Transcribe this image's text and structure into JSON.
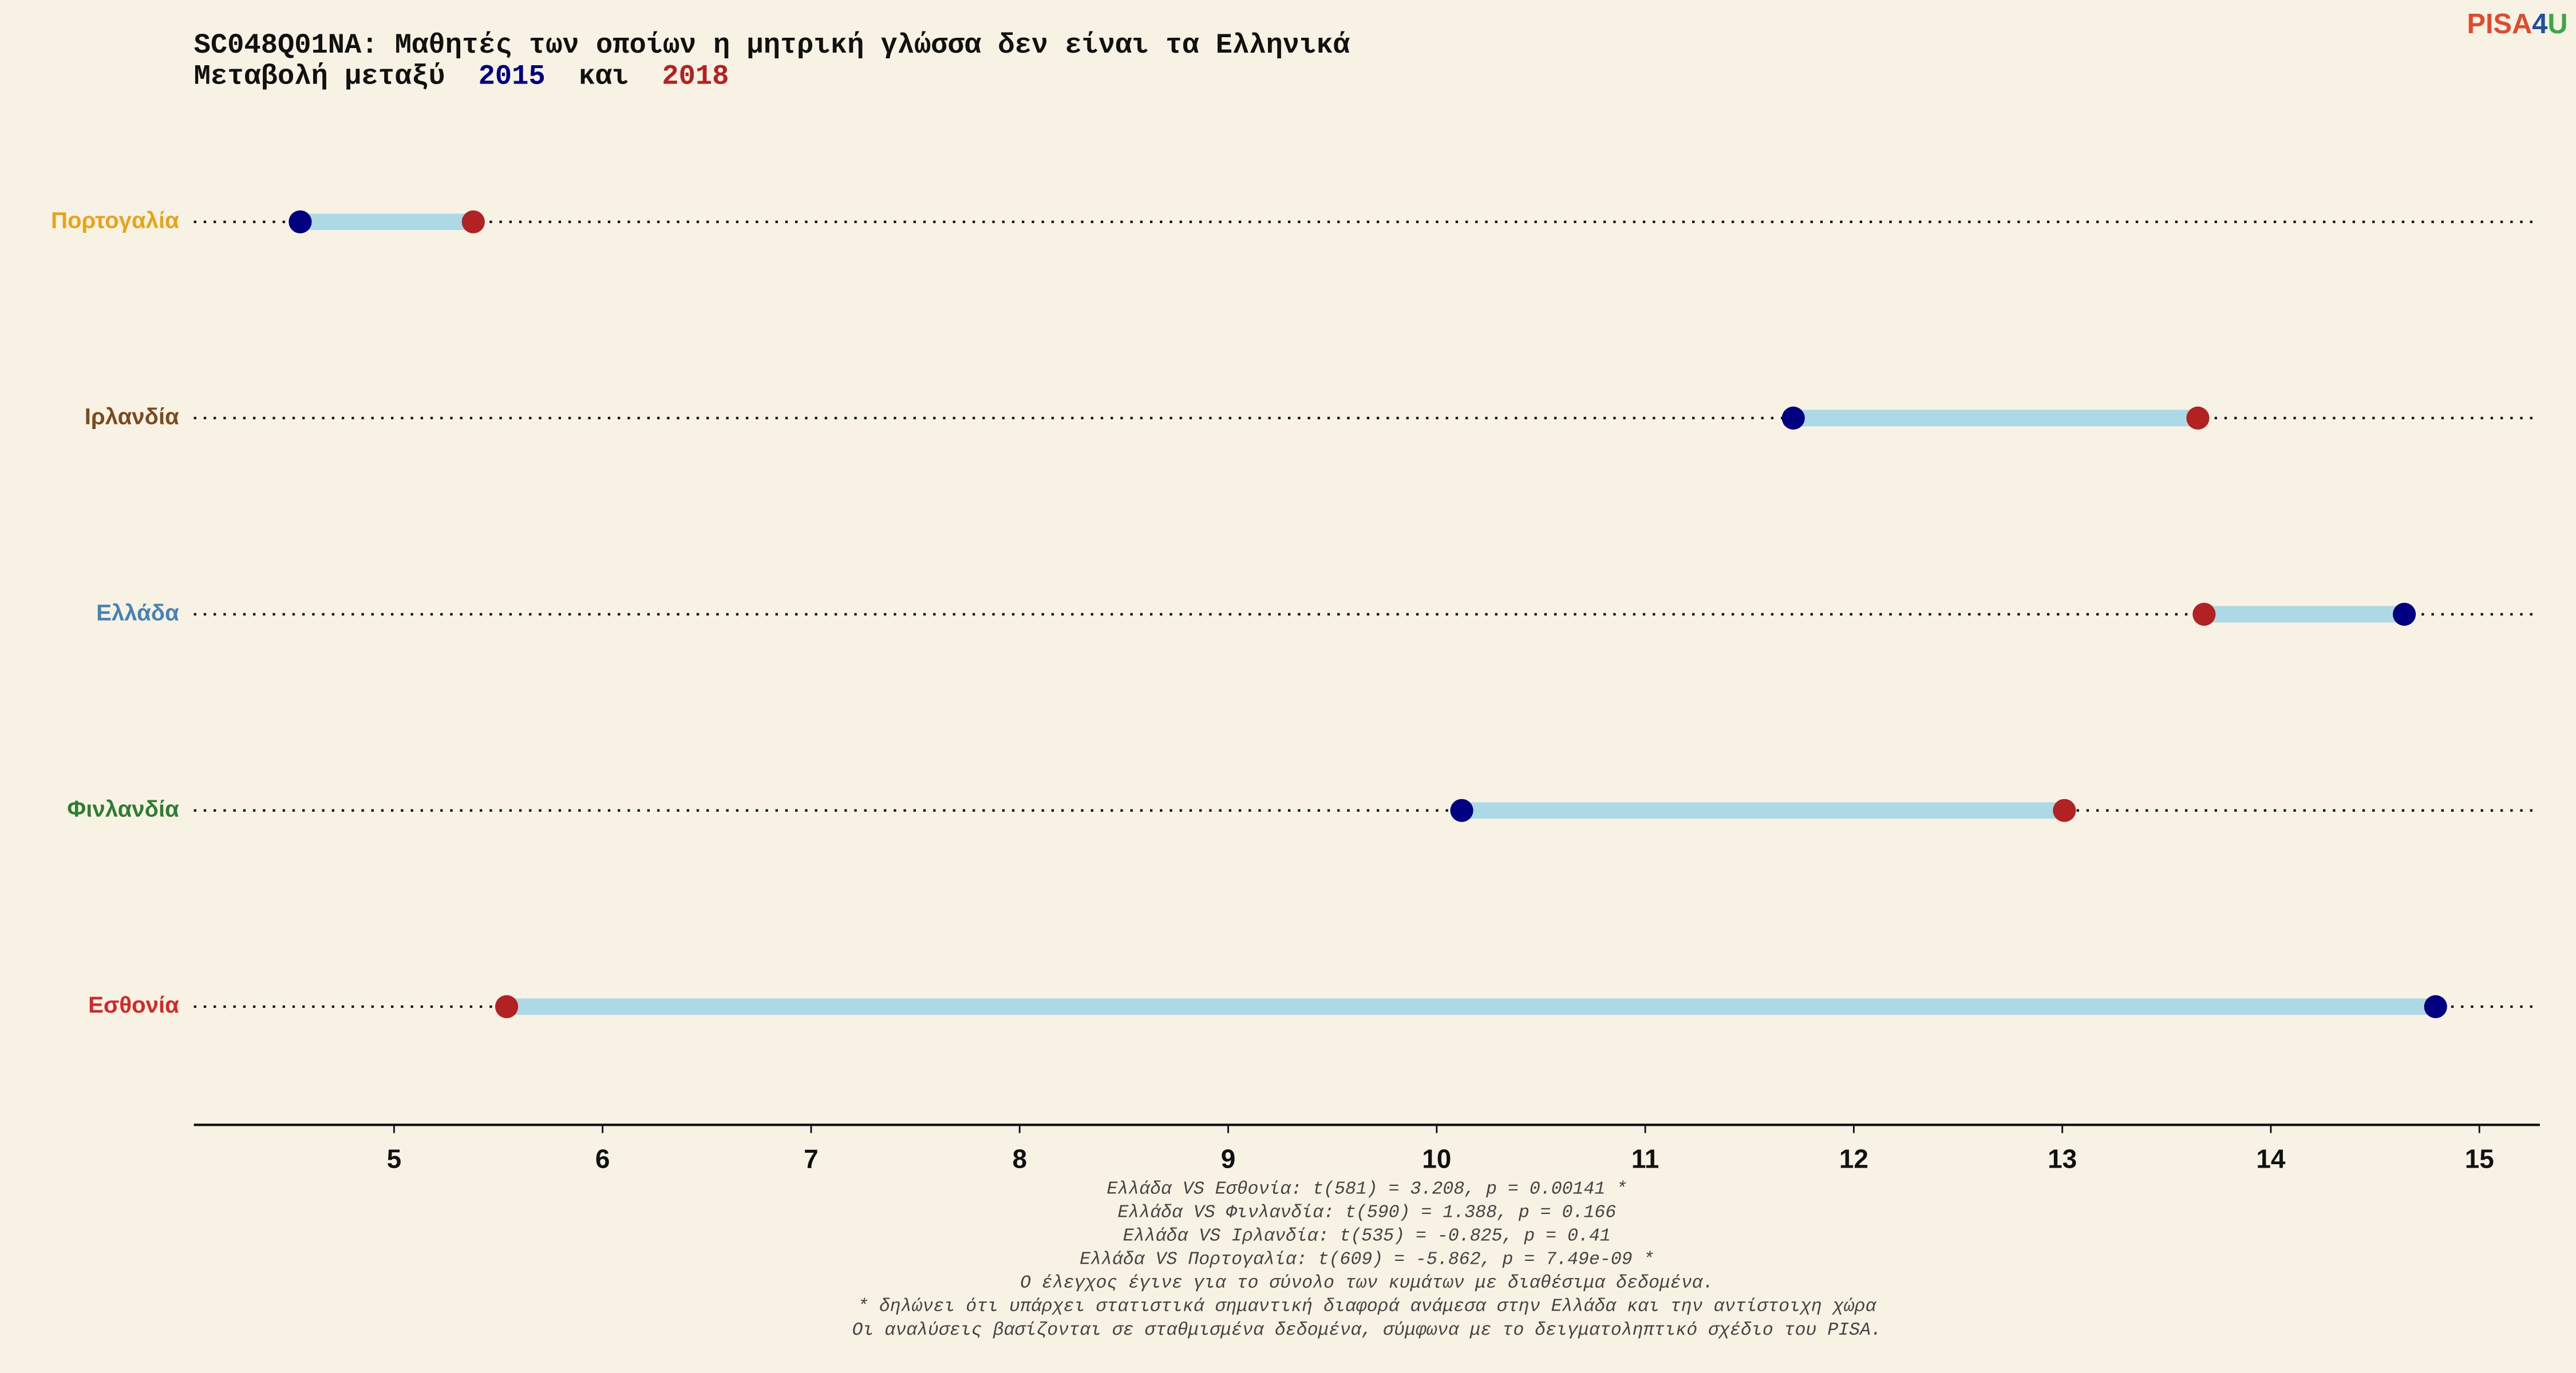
{
  "chart_data": {
    "type": "dumbbell",
    "title": "SC048Q01NA: Μαθητές των οποίων η μητρική γλώσσα δεν είναι τα Ελληνικά",
    "subtitle_start": "Μεταβολή μεταξύ",
    "subtitle_join": "και",
    "categories": [
      "Πορτογαλία",
      "Ιρλανδία",
      "Ελλάδα",
      "Φινλανδία",
      "Εσθονία"
    ],
    "category_colors": [
      "#e8a317",
      "#7b4a1e",
      "#4682b4",
      "#2e7d32",
      "#d62728"
    ],
    "series": [
      {
        "name": "2015",
        "color": "#000080",
        "values": [
          4.55,
          11.71,
          14.64,
          10.12,
          14.79
        ]
      },
      {
        "name": "2018",
        "color": "#b22222",
        "values": [
          5.38,
          13.65,
          13.68,
          13.01,
          5.54
        ]
      }
    ],
    "connector_color": "#add8e6",
    "xlim": [
      4.04,
      15.29
    ],
    "xticks": [
      5,
      6,
      7,
      8,
      9,
      10,
      11,
      12,
      13,
      14,
      15
    ],
    "notes": [
      "Ελλάδα VS Εσθονία: t(581) = 3.208, p = 0.00141 *",
      "Ελλάδα VS Φινλανδία: t(590) = 1.388, p = 0.166",
      "Ελλάδα VS Ιρλανδία: t(535) = -0.825, p = 0.41",
      "Ελλάδα VS Πορτογαλία: t(609) = -5.862, p = 7.49e-09 *",
      "Ο έλεγχος έγινε για το σύνολο των κυμάτων με διαθέσιμα δεδομένα.",
      "* δηλώνει ότι υπάρχει στατιστικά σημαντική διαφορά ανάμεσα στην Ελλάδα και την αντίστοιχη χώρα",
      "Οι αναλύσεις βασίζονται σε σταθμισμένα δεδομένα, σύμφωνα με το δειγματοληπτικό σχέδιο του PISA."
    ],
    "logo": [
      "PISA",
      "4",
      "U"
    ]
  }
}
